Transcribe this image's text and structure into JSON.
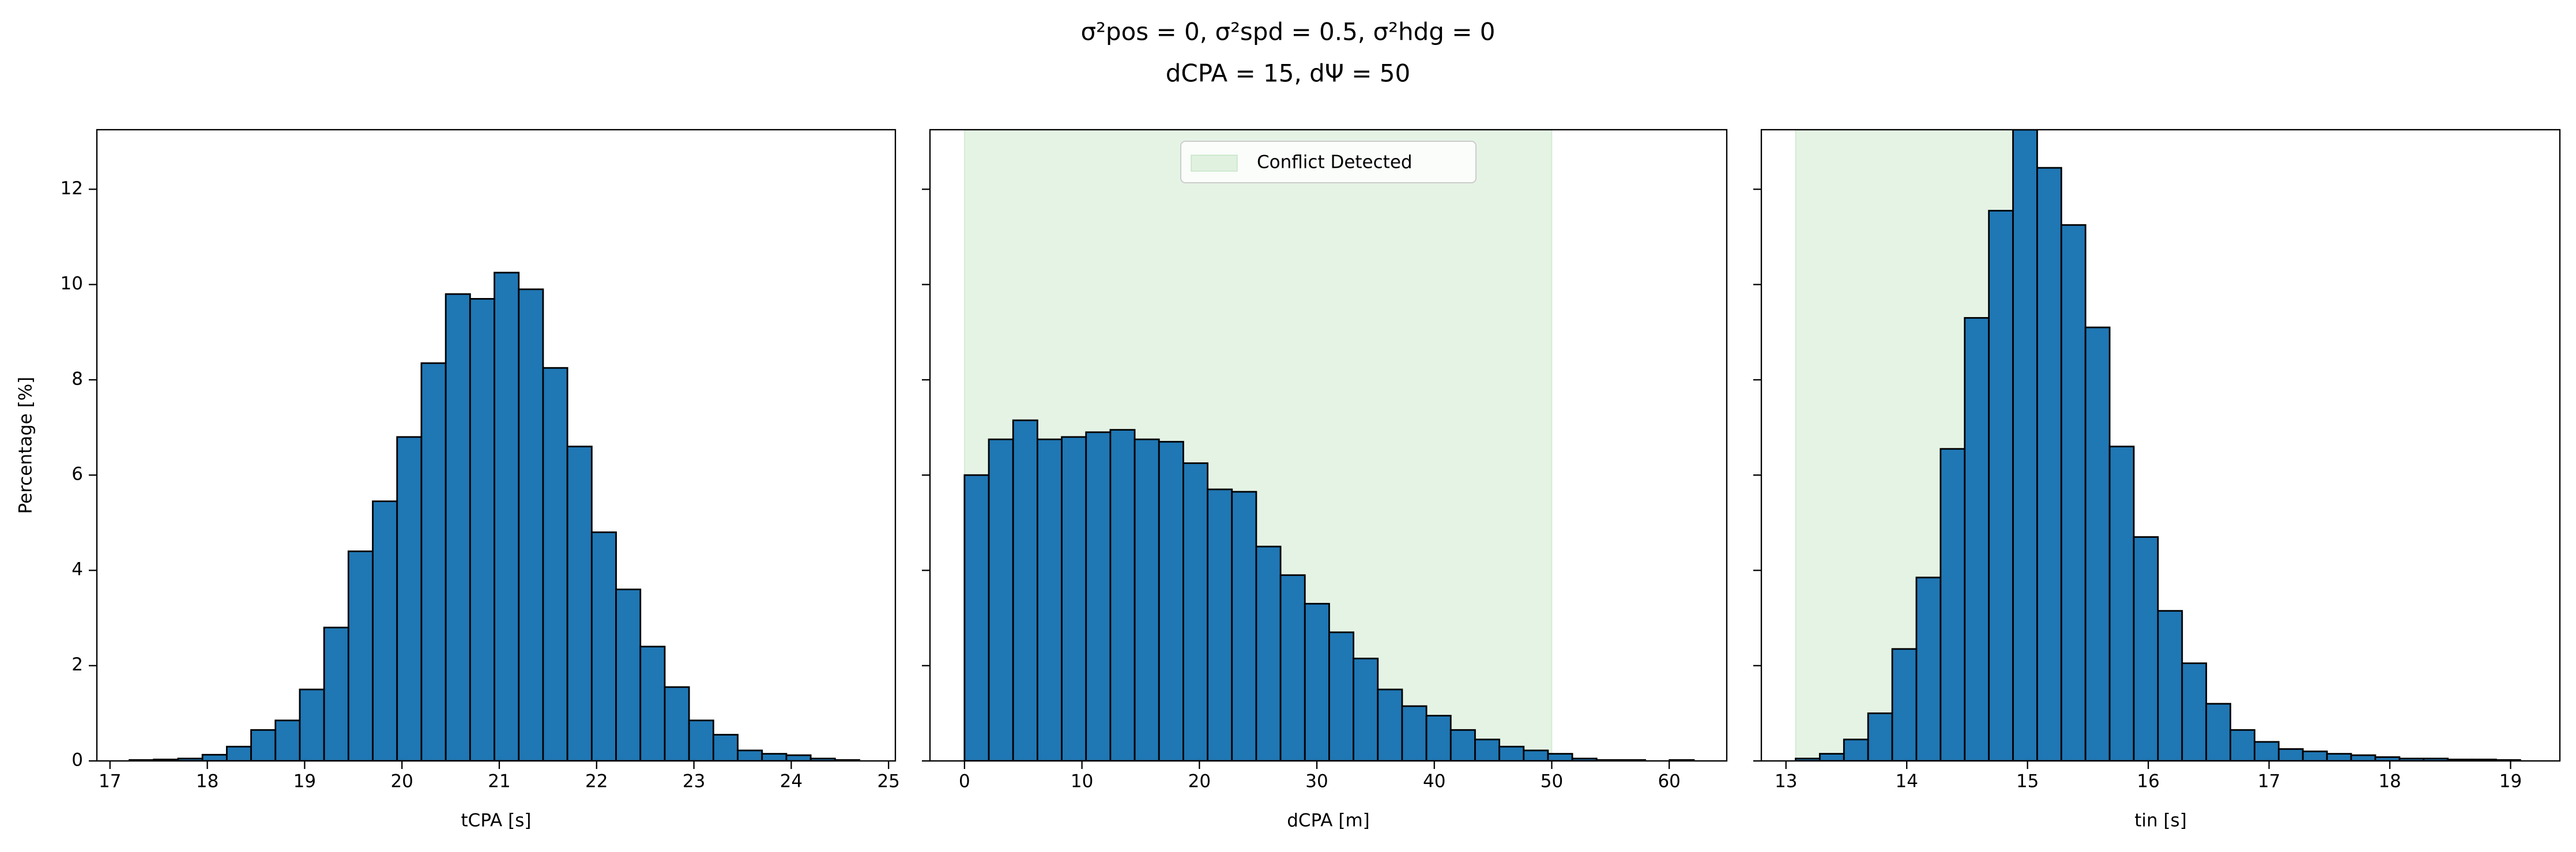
{
  "title": [
    "σ²pos = 0, σ²spd = 0.5, σ²hdg = 0",
    "dCPA = 15, dΨ = 50"
  ],
  "chart_data": [
    {
      "type": "histogram",
      "xlabel": "tCPA [s]",
      "ylabel": "Percentage [%]",
      "color": "#1f77b4",
      "edgecolor": "#000000",
      "bins": [
        17.2,
        17.45,
        17.7,
        17.95,
        18.2,
        18.45,
        18.7,
        18.95,
        19.2,
        19.45,
        19.7,
        19.95,
        20.2,
        20.45,
        20.7,
        20.95,
        21.2,
        21.45,
        21.7,
        21.95,
        22.2,
        22.45,
        22.7,
        22.95,
        23.2,
        23.45,
        23.7,
        23.95,
        24.2,
        24.45,
        24.7
      ],
      "values": [
        0.02,
        0.03,
        0.05,
        0.13,
        0.3,
        0.65,
        0.85,
        1.5,
        2.8,
        4.4,
        5.45,
        6.8,
        8.35,
        9.8,
        9.7,
        10.25,
        9.9,
        8.25,
        6.6,
        4.8,
        3.6,
        2.4,
        1.55,
        0.85,
        0.55,
        0.22,
        0.15,
        0.12,
        0.05,
        0.02
      ],
      "xlim": [
        16.865,
        25.07
      ],
      "xticks": [
        17,
        18,
        19,
        20,
        21,
        22,
        23,
        24,
        25
      ],
      "ylim": [
        0,
        13.25
      ],
      "yticks": [
        0,
        2,
        4,
        6,
        8,
        10,
        12
      ]
    },
    {
      "type": "histogram",
      "xlabel": "dCPA [m]",
      "color": "#1f77b4",
      "edgecolor": "#000000",
      "bins": [
        0,
        2.07,
        4.14,
        6.21,
        8.28,
        10.35,
        12.42,
        14.49,
        16.56,
        18.63,
        20.7,
        22.77,
        24.84,
        26.91,
        28.98,
        31.05,
        33.12,
        35.19,
        37.26,
        39.33,
        41.4,
        43.47,
        45.54,
        47.61,
        49.68,
        51.75,
        53.82,
        55.89,
        57.96,
        60.03,
        62.1
      ],
      "values": [
        6.0,
        6.75,
        7.15,
        6.75,
        6.8,
        6.9,
        6.95,
        6.75,
        6.7,
        6.25,
        5.7,
        5.65,
        4.5,
        3.9,
        3.3,
        2.7,
        2.15,
        1.5,
        1.15,
        0.95,
        0.65,
        0.45,
        0.3,
        0.22,
        0.15,
        0.05,
        0.02,
        0.02,
        0.0,
        0.02
      ],
      "span": {
        "name": "Conflict Detected",
        "range": [
          0,
          50
        ],
        "color": "#2ca02c"
      },
      "legend": "upper center",
      "xlim": [
        -2.94,
        64.9
      ],
      "xticks": [
        0,
        10,
        20,
        30,
        40,
        50,
        60
      ],
      "ylim": [
        0,
        13.25
      ],
      "yticks": [
        0,
        2,
        4,
        6,
        8,
        10,
        12
      ]
    },
    {
      "type": "histogram",
      "xlabel": "tin [s]",
      "color": "#1f77b4",
      "edgecolor": "#000000",
      "bins": [
        13.08,
        13.28,
        13.48,
        13.68,
        13.88,
        14.08,
        14.28,
        14.48,
        14.68,
        14.88,
        15.08,
        15.28,
        15.48,
        15.68,
        15.88,
        16.08,
        16.28,
        16.48,
        16.68,
        16.88,
        17.08,
        17.28,
        17.48,
        17.68,
        17.88,
        18.08,
        18.28,
        18.48,
        18.68,
        18.88,
        19.08
      ],
      "values": [
        0.05,
        0.15,
        0.45,
        1.0,
        2.35,
        3.85,
        6.55,
        9.3,
        11.55,
        13.25,
        12.45,
        11.25,
        9.1,
        6.6,
        4.7,
        3.15,
        2.05,
        1.2,
        0.65,
        0.4,
        0.25,
        0.2,
        0.15,
        0.12,
        0.08,
        0.05,
        0.05,
        0.03,
        0.03,
        0.02
      ],
      "span": {
        "range": [
          13.08,
          14.88
        ],
        "color": "#2ca02c"
      },
      "xlim": [
        12.796,
        19.408
      ],
      "xticks": [
        13,
        14,
        15,
        16,
        17,
        18,
        19
      ],
      "ylim": [
        0,
        13.25
      ],
      "yticks": [
        0,
        2,
        4,
        6,
        8,
        10,
        12
      ]
    }
  ]
}
